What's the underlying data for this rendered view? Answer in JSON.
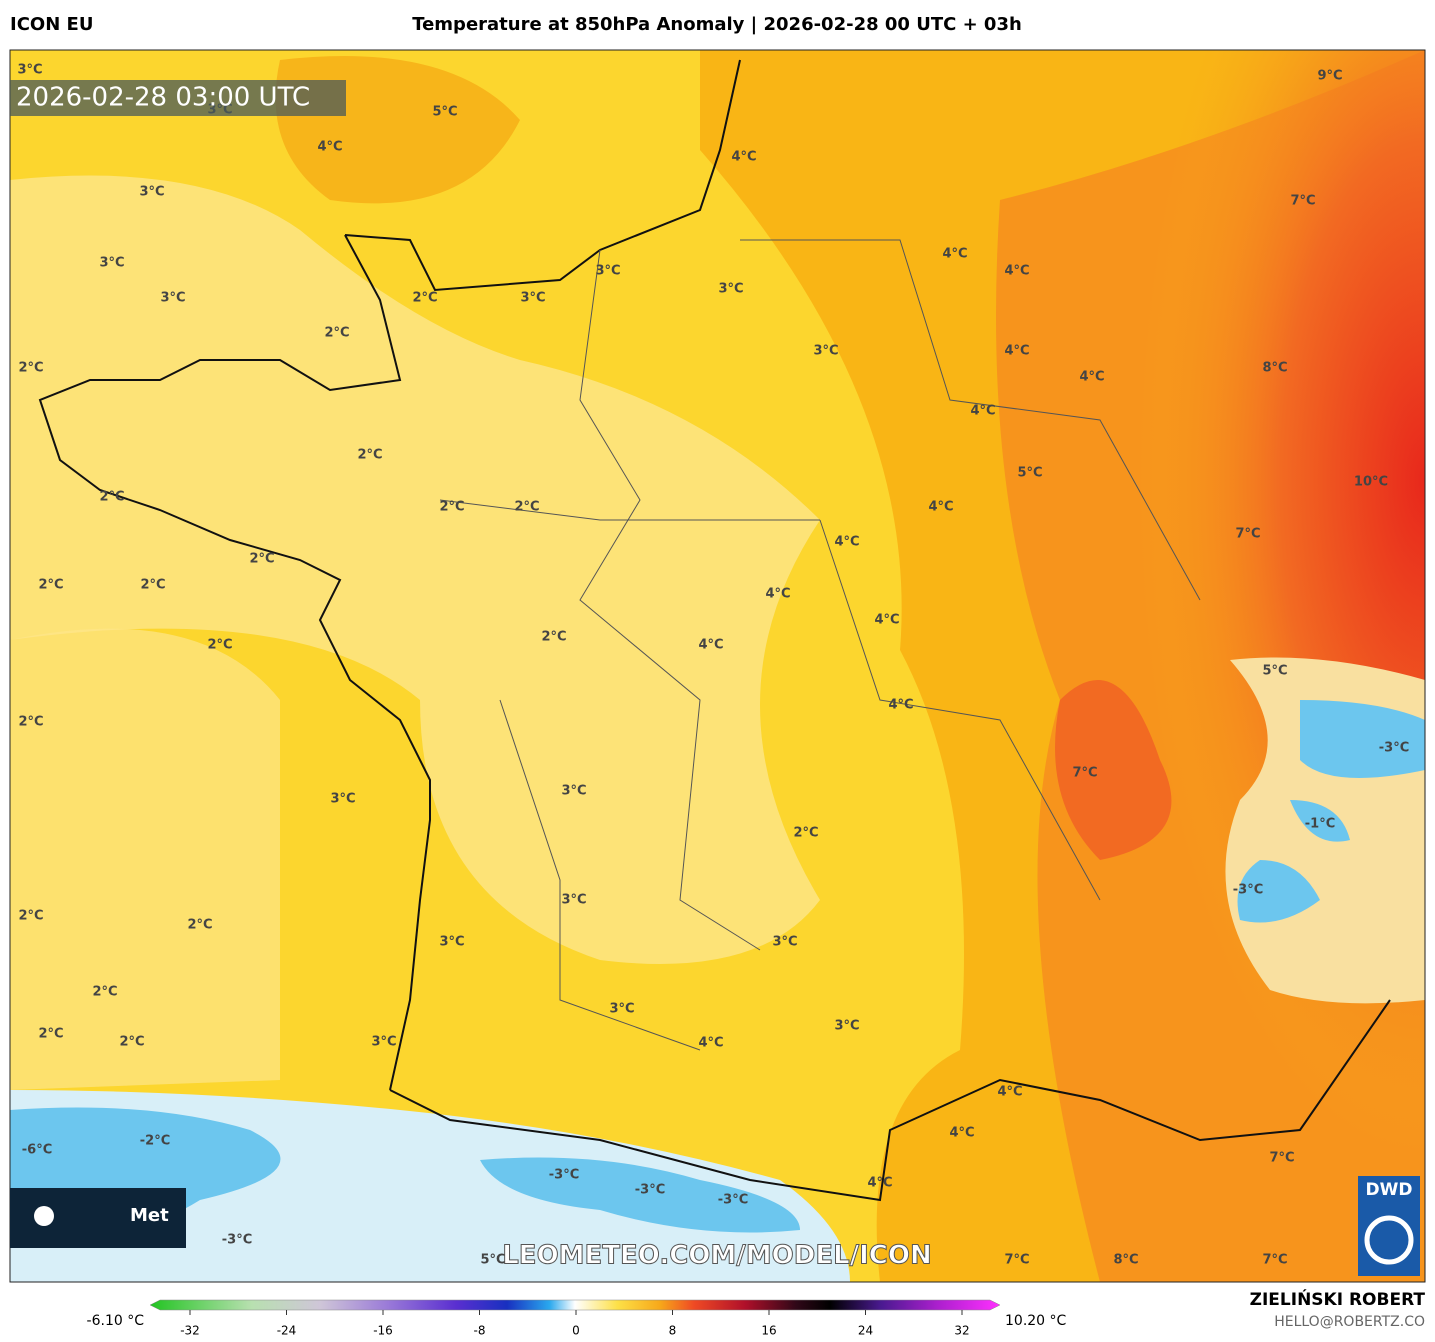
{
  "header": {
    "model": "ICON EU",
    "title": "Temperature at 850hPa Anomaly | 2026-02-28 00 UTC + 03h"
  },
  "map": {
    "timestamp": "2026-02-28 03:00 UTC",
    "watermark": "LEOMETEO.COM/MODEL/ICON",
    "labels": [
      "3°C",
      "3°C",
      "5°C",
      "4°C",
      "3°C",
      "3°C",
      "3°C",
      "2°C",
      "3°C",
      "3°C",
      "3°C",
      "2°C",
      "2°C",
      "3°C",
      "4°C",
      "9°C",
      "7°C",
      "4°C",
      "4°C",
      "4°C",
      "4°C",
      "8°C",
      "4°C",
      "2°C",
      "5°C",
      "10°C",
      "2°C",
      "2°C",
      "2°C",
      "4°C",
      "4°C",
      "7°C",
      "2°C",
      "2°C",
      "2°C",
      "4°C",
      "4°C",
      "2°C",
      "4°C",
      "2°C",
      "5°C",
      "4°C",
      "2°C",
      "-3°C",
      "7°C",
      "3°C",
      "3°C",
      "2°C",
      "-1°C",
      "-3°C",
      "3°C",
      "2°C",
      "2°C",
      "3°C",
      "3°C",
      "2°C",
      "3°C",
      "3°C",
      "2°C",
      "2°C",
      "3°C",
      "4°C",
      "4°C",
      "-2°C",
      "-6°C",
      "4°C",
      "-3°C",
      "7°C",
      "-3°C",
      "4°C",
      "-3°C",
      "-3°C",
      "5°C",
      "7°C",
      "8°C",
      "7°C"
    ]
  },
  "logos": {
    "meteo": "Met",
    "dwd": "DWD"
  },
  "colorbar": {
    "min_label": "-6.10 °C",
    "max_label": "10.20 °C",
    "lim": [
      -32,
      32
    ],
    "ticks": [
      -32,
      -24,
      -16,
      -8,
      0,
      8,
      16,
      24,
      32
    ]
  },
  "footer": {
    "author": "ZIELIŃSKI ROBERT",
    "email": "HELLO@ROBERTZ.CO"
  }
}
